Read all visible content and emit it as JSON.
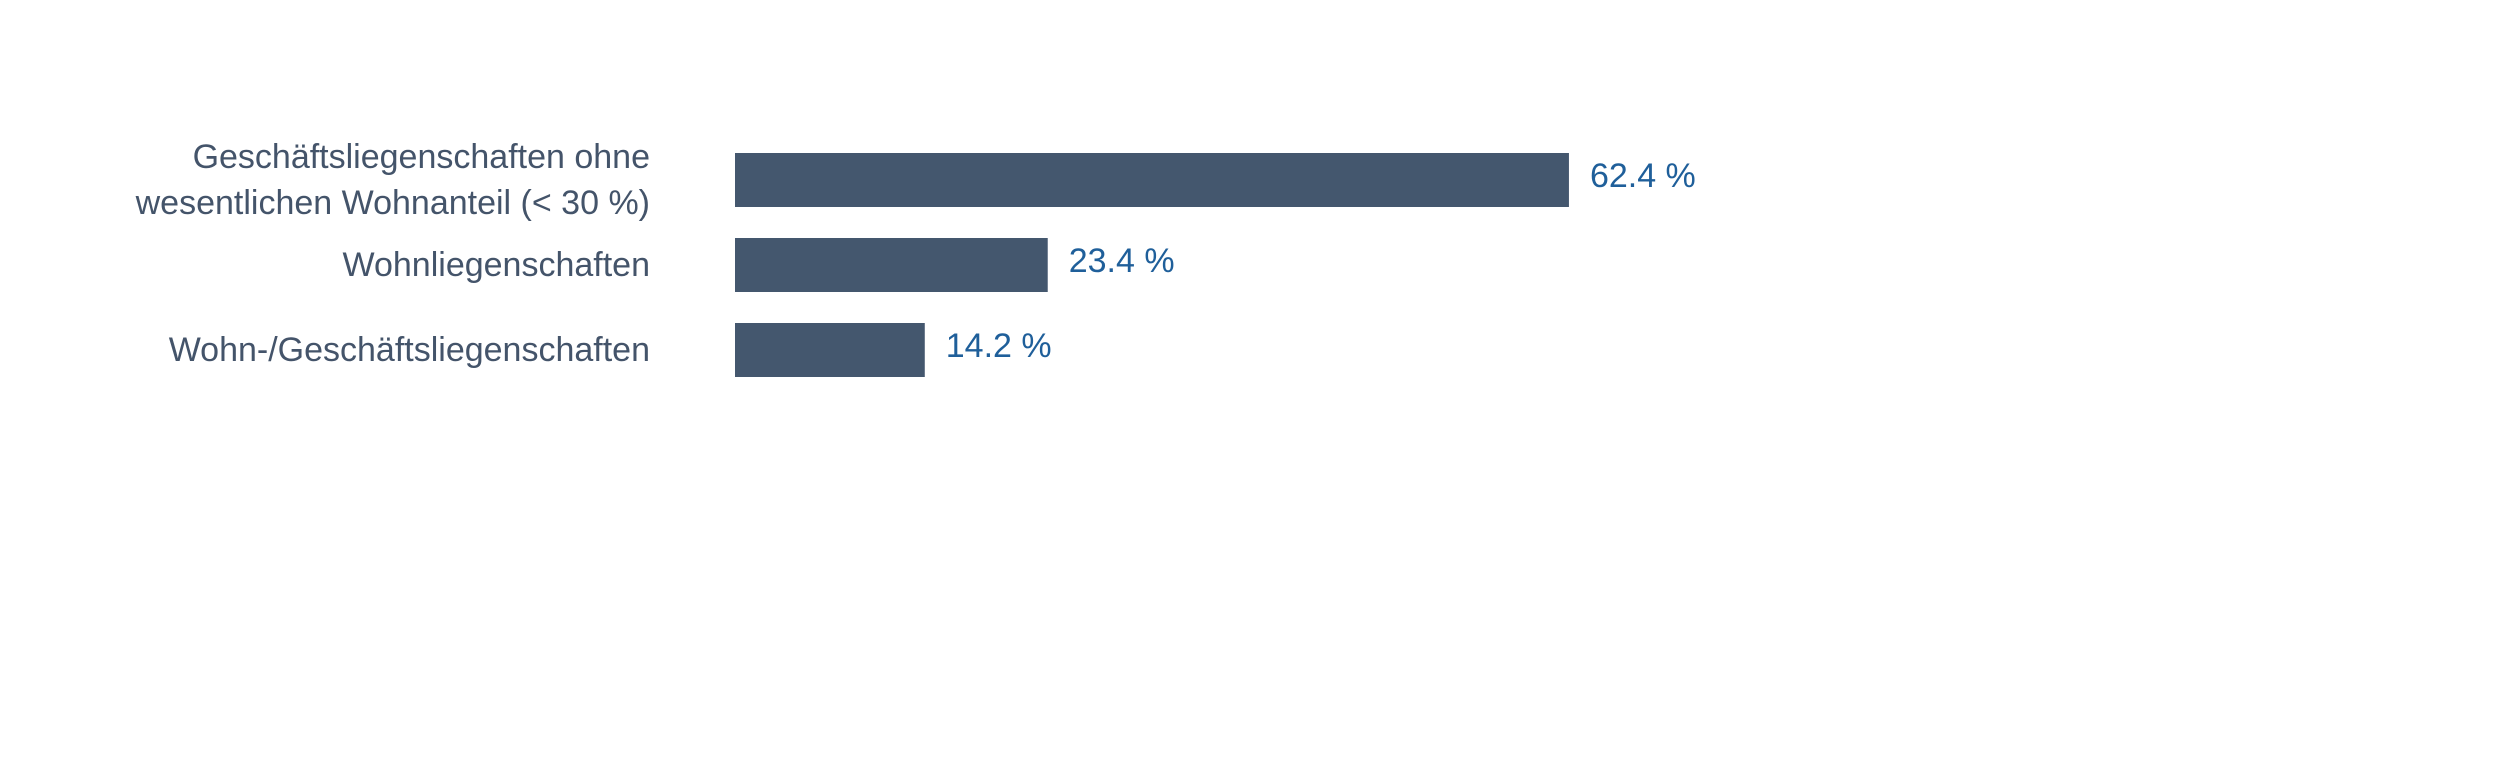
{
  "chart_data": {
    "type": "bar",
    "orientation": "horizontal",
    "categories": [
      [
        "Geschäftsliegenschaften ohne",
        "wesentlichen Wohnanteil (< 30 %)"
      ],
      [
        "Wohnliegenschaften"
      ],
      [
        "Wohn-/Geschäftsliegenschaften"
      ]
    ],
    "values": [
      62.4,
      23.4,
      14.2
    ],
    "value_labels": [
      "62.4 %",
      "23.4 %",
      "14.2 %"
    ],
    "title": "",
    "xlabel": "",
    "ylabel": "",
    "xlim": [
      0,
      100
    ],
    "grid": false,
    "legend": "none",
    "colors": {
      "bar": "#44576e",
      "category_text": "#44546a",
      "value_text": "#1f5f9a"
    }
  }
}
